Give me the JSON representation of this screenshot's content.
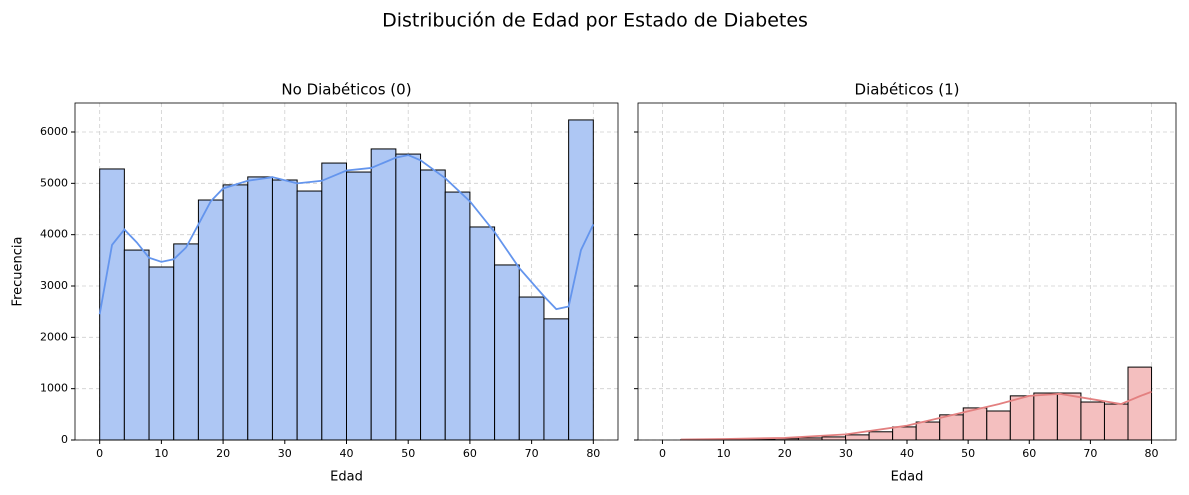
{
  "title": "Distribución de Edad por Estado de Diabetes",
  "chart_data": [
    {
      "type": "histogram",
      "title": "No Diabéticos (0)",
      "xlabel": "Edad",
      "ylabel": "Frecuencia",
      "bins": [
        0,
        4,
        8,
        12,
        16,
        20,
        24,
        28,
        32,
        36,
        40,
        44,
        48,
        52,
        56,
        60,
        64,
        68,
        72,
        76,
        80
      ],
      "counts": [
        5280,
        3700,
        3370,
        3820,
        4675,
        4970,
        5125,
        5065,
        4850,
        5395,
        5220,
        5670,
        5570,
        5260,
        4830,
        4150,
        3410,
        2785,
        2360,
        6235
      ],
      "color": "#aec7f4",
      "edgecolor": "#000000",
      "kde": {
        "color": "#6495ed",
        "x": [
          0,
          2,
          4,
          6,
          8,
          10,
          12,
          14,
          16,
          18,
          20,
          24,
          28,
          32,
          36,
          40,
          44,
          48,
          50,
          52,
          56,
          60,
          64,
          68,
          72,
          74,
          76,
          78,
          80
        ],
        "values": [
          2450,
          3800,
          4100,
          3850,
          3550,
          3470,
          3520,
          3750,
          4200,
          4650,
          4900,
          5050,
          5120,
          5000,
          5050,
          5250,
          5300,
          5500,
          5550,
          5450,
          5100,
          4650,
          4050,
          3350,
          2800,
          2550,
          2600,
          3700,
          4200
        ]
      },
      "xlim": [
        -4,
        84
      ],
      "xticks": [
        0,
        10,
        20,
        30,
        40,
        50,
        60,
        70,
        80
      ],
      "ylim": [
        0,
        6565
      ],
      "yticks": [
        0,
        1000,
        2000,
        3000,
        4000,
        5000,
        6000
      ],
      "ytick_labels": true,
      "grid": true
    },
    {
      "type": "histogram",
      "title": "Diabéticos (1)",
      "xlabel": "Edad",
      "bins": [
        3,
        6.85,
        10.7,
        14.55,
        18.4,
        22.25,
        26.1,
        29.95,
        33.8,
        37.65,
        41.5,
        45.35,
        49.2,
        53.05,
        56.9,
        60.75,
        64.6,
        68.45,
        72.3,
        76.15,
        80
      ],
      "counts": [
        5,
        8,
        10,
        15,
        25,
        40,
        60,
        100,
        160,
        255,
        350,
        490,
        625,
        565,
        860,
        915,
        915,
        740,
        700,
        1420
      ],
      "color": "#f4bfbf",
      "edgecolor": "#000000",
      "kde": {
        "color": "#e38080",
        "x": [
          3,
          10,
          20,
          30,
          40,
          45,
          50,
          55,
          60,
          65,
          70,
          75,
          78,
          80
        ],
        "values": [
          10,
          20,
          40,
          110,
          280,
          420,
          560,
          700,
          860,
          900,
          800,
          700,
          850,
          940
        ]
      },
      "xlim": [
        -4,
        84
      ],
      "xticks": [
        0,
        10,
        20,
        30,
        40,
        50,
        60,
        70,
        80
      ],
      "ylim": [
        0,
        6565
      ],
      "yticks": [
        0,
        1000,
        2000,
        3000,
        4000,
        5000,
        6000
      ],
      "ytick_labels": false,
      "grid": true
    }
  ]
}
